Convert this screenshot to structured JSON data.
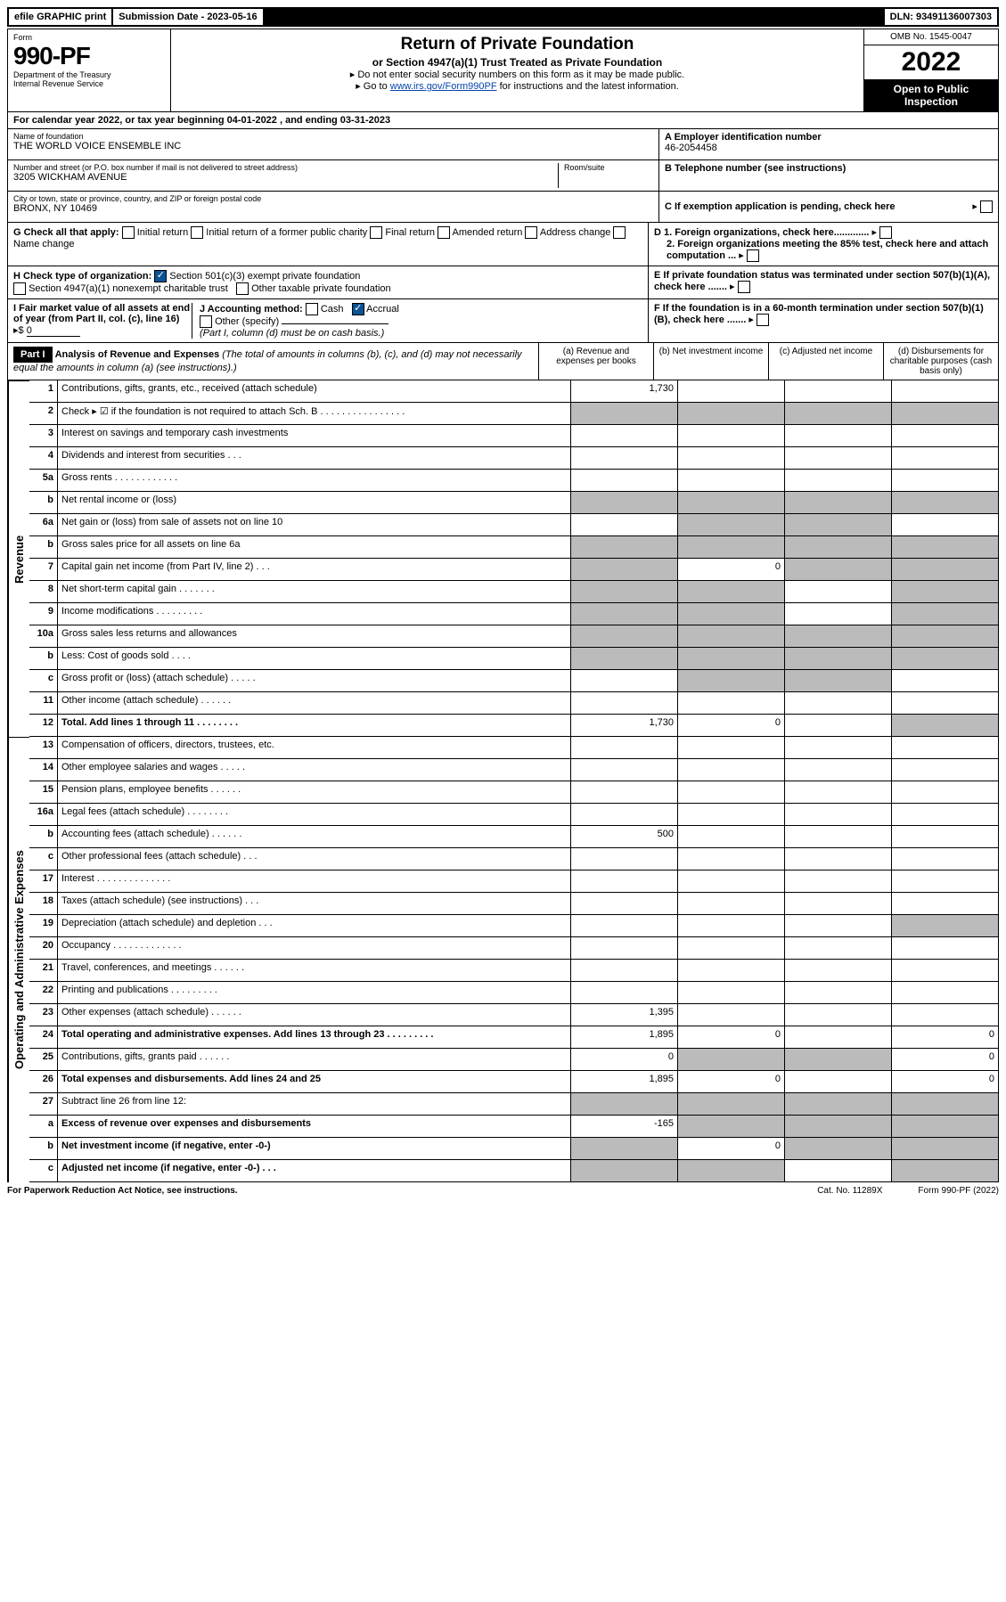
{
  "topbar": {
    "efile": "efile GRAPHIC print",
    "submission": "Submission Date - 2023-05-16",
    "dln": "DLN: 93491136007303"
  },
  "header": {
    "form_label": "Form",
    "form_number": "990-PF",
    "dept": "Department of the Treasury",
    "irs": "Internal Revenue Service",
    "title": "Return of Private Foundation",
    "subtitle": "or Section 4947(a)(1) Trust Treated as Private Foundation",
    "note1": "▸ Do not enter social security numbers on this form as it may be made public.",
    "note2_pre": "▸ Go to ",
    "note2_link": "www.irs.gov/Form990PF",
    "note2_post": " for instructions and the latest information.",
    "omb": "OMB No. 1545-0047",
    "year": "2022",
    "open": "Open to Public Inspection"
  },
  "calyear": "For calendar year 2022, or tax year beginning 04-01-2022           , and ending 03-31-2023",
  "info": {
    "name_label": "Name of foundation",
    "name": "THE WORLD VOICE ENSEMBLE INC",
    "addr_label": "Number and street (or P.O. box number if mail is not delivered to street address)",
    "addr": "3205 WICKHAM AVENUE",
    "room_label": "Room/suite",
    "city_label": "City or town, state or province, country, and ZIP or foreign postal code",
    "city": "BRONX, NY  10469",
    "ein_label": "A Employer identification number",
    "ein": "46-2054458",
    "phone_label": "B Telephone number (see instructions)",
    "c_label": "C If exemption application is pending, check here",
    "d1_label": "D 1. Foreign organizations, check here.............",
    "d2_label": "2. Foreign organizations meeting the 85% test, check here and attach computation ...",
    "e_label": "E  If private foundation status was terminated under section 507(b)(1)(A), check here .......",
    "f_label": "F  If the foundation is in a 60-month termination under section 507(b)(1)(B), check here .......",
    "g_label": "G Check all that apply:",
    "g_opts": [
      "Initial return",
      "Initial return of a former public charity",
      "Final return",
      "Amended return",
      "Address change",
      "Name change"
    ],
    "h_label": "H Check type of organization:",
    "h_opts": [
      "Section 501(c)(3) exempt private foundation",
      "Section 4947(a)(1) nonexempt charitable trust",
      "Other taxable private foundation"
    ],
    "i_label": "I Fair market value of all assets at end of year (from Part II, col. (c), line 16)",
    "i_value": "0",
    "j_label": "J Accounting method:",
    "j_opts": [
      "Cash",
      "Accrual"
    ],
    "j_other": "Other (specify)",
    "j_note": "(Part I, column (d) must be on cash basis.)"
  },
  "part1": {
    "label": "Part I",
    "title": "Analysis of Revenue and Expenses",
    "title_note": "(The total of amounts in columns (b), (c), and (d) may not necessarily equal the amounts in column (a) (see instructions).)",
    "col_a": "(a)   Revenue and expenses per books",
    "col_b": "(b)   Net investment income",
    "col_c": "(c)   Adjusted net income",
    "col_d": "(d)   Disbursements for charitable purposes (cash basis only)"
  },
  "sections": {
    "revenue": "Revenue",
    "operating": "Operating and Administrative Expenses"
  },
  "rows": [
    {
      "n": "1",
      "t": "Contributions, gifts, grants, etc., received (attach schedule)",
      "a": "1,730",
      "shade_b": false
    },
    {
      "n": "2",
      "t": "Check ▸ ☑ if the foundation is not required to attach Sch. B   .  .  .  .  .  .  .  .  .  .  .  .  .  .  .  .",
      "shade_all": true
    },
    {
      "n": "3",
      "t": "Interest on savings and temporary cash investments"
    },
    {
      "n": "4",
      "t": "Dividends and interest from securities    .   .   ."
    },
    {
      "n": "5a",
      "t": "Gross rents    .   .   .   .   .   .   .   .   .   .   .   ."
    },
    {
      "n": "b",
      "t": "Net rental income or (loss)",
      "inline": true,
      "shade_all": true
    },
    {
      "n": "6a",
      "t": "Net gain or (loss) from sale of assets not on line 10",
      "shade_bc": true
    },
    {
      "n": "b",
      "t": "Gross sales price for all assets on line 6a",
      "inline": true,
      "shade_all": true
    },
    {
      "n": "7",
      "t": "Capital gain net income (from Part IV, line 2)   .   .   .",
      "b": "0",
      "shade_a": true,
      "shade_cd": true
    },
    {
      "n": "8",
      "t": "Net short-term capital gain   .   .   .   .   .   .   .",
      "shade_ab": true,
      "shade_d": true
    },
    {
      "n": "9",
      "t": "Income modifications  .   .   .   .   .   .   .   .   .",
      "shade_ab": true,
      "shade_d": true
    },
    {
      "n": "10a",
      "t": "Gross sales less returns and allowances",
      "inline": true,
      "shade_all": true
    },
    {
      "n": "b",
      "t": "Less: Cost of goods sold    .   .   .   .",
      "inline": true,
      "shade_all": true
    },
    {
      "n": "c",
      "t": "Gross profit or (loss) (attach schedule)    .   .   .   .   .",
      "shade_bc": true
    },
    {
      "n": "11",
      "t": "Other income (attach schedule)    .   .   .   .   .   ."
    },
    {
      "n": "12",
      "t": "Total. Add lines 1 through 11   .   .   .   .   .   .   .   .",
      "a": "1,730",
      "b": "0",
      "bold": true,
      "shade_d": true
    }
  ],
  "exp_rows": [
    {
      "n": "13",
      "t": "Compensation of officers, directors, trustees, etc."
    },
    {
      "n": "14",
      "t": "Other employee salaries and wages   .   .   .   .   ."
    },
    {
      "n": "15",
      "t": "Pension plans, employee benefits  .   .   .   .   .   ."
    },
    {
      "n": "16a",
      "t": "Legal fees (attach schedule)  .   .   .   .   .   .   .   ."
    },
    {
      "n": "b",
      "t": "Accounting fees (attach schedule)  .   .   .   .   .   .",
      "a": "500"
    },
    {
      "n": "c",
      "t": "Other professional fees (attach schedule)    .   .   ."
    },
    {
      "n": "17",
      "t": "Interest  .   .   .   .   .   .   .   .   .   .   .   .   .   ."
    },
    {
      "n": "18",
      "t": "Taxes (attach schedule) (see instructions)    .   .   ."
    },
    {
      "n": "19",
      "t": "Depreciation (attach schedule) and depletion   .   .   .",
      "shade_d": true
    },
    {
      "n": "20",
      "t": "Occupancy  .   .   .   .   .   .   .   .   .   .   .   .   ."
    },
    {
      "n": "21",
      "t": "Travel, conferences, and meetings  .   .   .   .   .   ."
    },
    {
      "n": "22",
      "t": "Printing and publications  .   .   .   .   .   .   .   .   ."
    },
    {
      "n": "23",
      "t": "Other expenses (attach schedule)  .   .   .   .   .   .",
      "a": "1,395"
    },
    {
      "n": "24",
      "t": "Total operating and administrative expenses. Add lines 13 through 23   .   .   .   .   .   .   .   .   .",
      "a": "1,895",
      "b": "0",
      "d": "0",
      "bold": true
    },
    {
      "n": "25",
      "t": "Contributions, gifts, grants paid    .   .   .   .   .   .",
      "a": "0",
      "d": "0",
      "shade_bc": true
    },
    {
      "n": "26",
      "t": "Total expenses and disbursements. Add lines 24 and 25",
      "a": "1,895",
      "b": "0",
      "d": "0",
      "bold": true
    },
    {
      "n": "27",
      "t": "Subtract line 26 from line 12:",
      "shade_all": true
    },
    {
      "n": "a",
      "t": "Excess of revenue over expenses and disbursements",
      "a": "-165",
      "bold": true,
      "shade_bcd": true
    },
    {
      "n": "b",
      "t": "Net investment income (if negative, enter -0-)",
      "b": "0",
      "bold": true,
      "shade_a": true,
      "shade_cd": true
    },
    {
      "n": "c",
      "t": "Adjusted net income (if negative, enter -0-)   .   .   .",
      "bold": true,
      "shade_ab": true,
      "shade_d": true
    }
  ],
  "footer": {
    "left": "For Paperwork Reduction Act Notice, see instructions.",
    "mid": "Cat. No. 11289X",
    "right": "Form 990-PF (2022)"
  }
}
